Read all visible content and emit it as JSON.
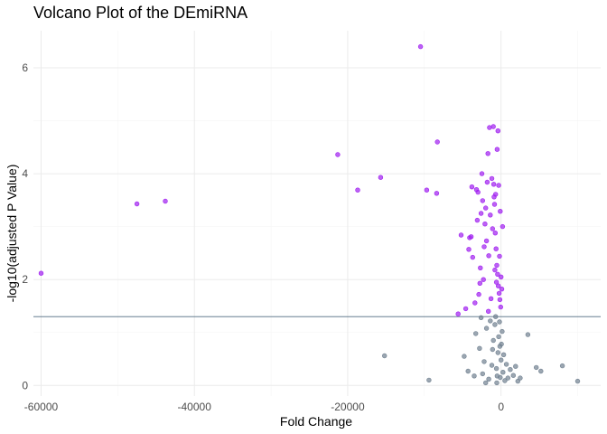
{
  "chart_data": {
    "type": "scatter",
    "title": "Volcano Plot of the DEmiRNA",
    "xlabel": "Fold Change",
    "ylabel": "-log10(adjusted P Value)",
    "xlim": [
      -61000,
      13000
    ],
    "ylim": [
      -0.2,
      6.7
    ],
    "xticks": [
      -60000,
      -40000,
      -20000,
      0
    ],
    "xtick_labels": [
      "-60000",
      "-40000",
      "-20000",
      "0"
    ],
    "yticks": [
      0,
      2,
      4,
      6
    ],
    "ytick_labels": [
      "0",
      "2",
      "4",
      "6"
    ],
    "threshold_y": 1.3,
    "grid": true,
    "colors": {
      "significant": "#a020f0",
      "not_significant": "#708090",
      "threshold_line": "#4f6b80",
      "grid_major": "#ebebeb",
      "grid_minor": "#f5f5f5"
    },
    "series": [
      {
        "color": "#a020f0",
        "points": [
          [
            -60000,
            2.12
          ],
          [
            -47500,
            3.43
          ],
          [
            -43800,
            3.48
          ],
          [
            -21300,
            4.36
          ],
          [
            -18700,
            3.69
          ],
          [
            -15700,
            3.93
          ],
          [
            -10500,
            6.4
          ],
          [
            -9700,
            3.69
          ],
          [
            -8400,
            3.63
          ],
          [
            -8300,
            4.6
          ],
          [
            -5200,
            2.84
          ],
          [
            -4200,
            2.57
          ],
          [
            -4100,
            2.79
          ],
          [
            -3900,
            2.81
          ],
          [
            -3800,
            3.75
          ],
          [
            -3700,
            2.42
          ],
          [
            -3200,
            3.7
          ],
          [
            -3100,
            3.12
          ],
          [
            -3000,
            3.65
          ],
          [
            -2900,
            1.72
          ],
          [
            -2700,
            2.22
          ],
          [
            -2600,
            3.25
          ],
          [
            -2500,
            4.0
          ],
          [
            -2400,
            3.49
          ],
          [
            -2300,
            2.0
          ],
          [
            -2200,
            2.62
          ],
          [
            -2100,
            3.05
          ],
          [
            -2000,
            3.35
          ],
          [
            -1900,
            2.73
          ],
          [
            -1800,
            3.84
          ],
          [
            -1700,
            4.38
          ],
          [
            -1600,
            2.45
          ],
          [
            -1500,
            4.87
          ],
          [
            -1400,
            3.22
          ],
          [
            -1300,
            1.64
          ],
          [
            -1200,
            3.91
          ],
          [
            -1100,
            2.96
          ],
          [
            -1000,
            4.89
          ],
          [
            -900,
            3.56
          ],
          [
            -800,
            2.18
          ],
          [
            -700,
            3.61
          ],
          [
            -600,
            1.95
          ],
          [
            -500,
            4.46
          ],
          [
            -400,
            4.81
          ],
          [
            -300,
            3.78
          ],
          [
            -200,
            2.44
          ],
          [
            -100,
            3.29
          ],
          [
            0,
            2.05
          ],
          [
            100,
            1.82
          ],
          [
            200,
            3.0
          ],
          [
            -50,
            1.48
          ],
          [
            -150,
            1.62
          ],
          [
            -250,
            1.74
          ],
          [
            -350,
            1.88
          ],
          [
            -450,
            2.1
          ],
          [
            -550,
            2.27
          ],
          [
            -650,
            2.58
          ],
          [
            -750,
            2.88
          ],
          [
            -850,
            3.42
          ],
          [
            -950,
            3.8
          ],
          [
            -4600,
            1.45
          ],
          [
            -5600,
            1.35
          ],
          [
            -3400,
            1.56
          ],
          [
            -2750,
            1.93
          ],
          [
            -1650,
            1.4
          ]
        ]
      },
      {
        "color": "#708090",
        "points": [
          [
            -15200,
            0.56
          ],
          [
            -9400,
            0.1
          ],
          [
            -4800,
            0.55
          ],
          [
            -4300,
            0.27
          ],
          [
            -3500,
            0.18
          ],
          [
            -3300,
            0.98
          ],
          [
            -2800,
            0.7
          ],
          [
            -2400,
            0.22
          ],
          [
            -2200,
            0.45
          ],
          [
            -1900,
            1.08
          ],
          [
            -1600,
            0.12
          ],
          [
            -1400,
            1.22
          ],
          [
            -1200,
            0.38
          ],
          [
            -1000,
            0.85
          ],
          [
            -800,
            1.15
          ],
          [
            -600,
            0.32
          ],
          [
            -400,
            0.62
          ],
          [
            -300,
            0.92
          ],
          [
            -200,
            1.2
          ],
          [
            -100,
            0.15
          ],
          [
            0,
            0.48
          ],
          [
            50,
            0.78
          ],
          [
            150,
            1.02
          ],
          [
            250,
            0.25
          ],
          [
            350,
            0.58
          ],
          [
            500,
            0.09
          ],
          [
            700,
            0.4
          ],
          [
            900,
            0.14
          ],
          [
            1200,
            0.3
          ],
          [
            1600,
            0.19
          ],
          [
            1900,
            0.36
          ],
          [
            2200,
            0.08
          ],
          [
            2500,
            0.14
          ],
          [
            3500,
            0.96
          ],
          [
            4600,
            0.34
          ],
          [
            5200,
            0.27
          ],
          [
            8000,
            0.37
          ],
          [
            10000,
            0.08
          ],
          [
            -700,
            1.3
          ],
          [
            -550,
            0.05
          ],
          [
            -2600,
            1.28
          ],
          [
            -2000,
            0.05
          ],
          [
            -1100,
            0.68
          ],
          [
            -500,
            0.18
          ],
          [
            -150,
            0.74
          ]
        ]
      }
    ]
  }
}
